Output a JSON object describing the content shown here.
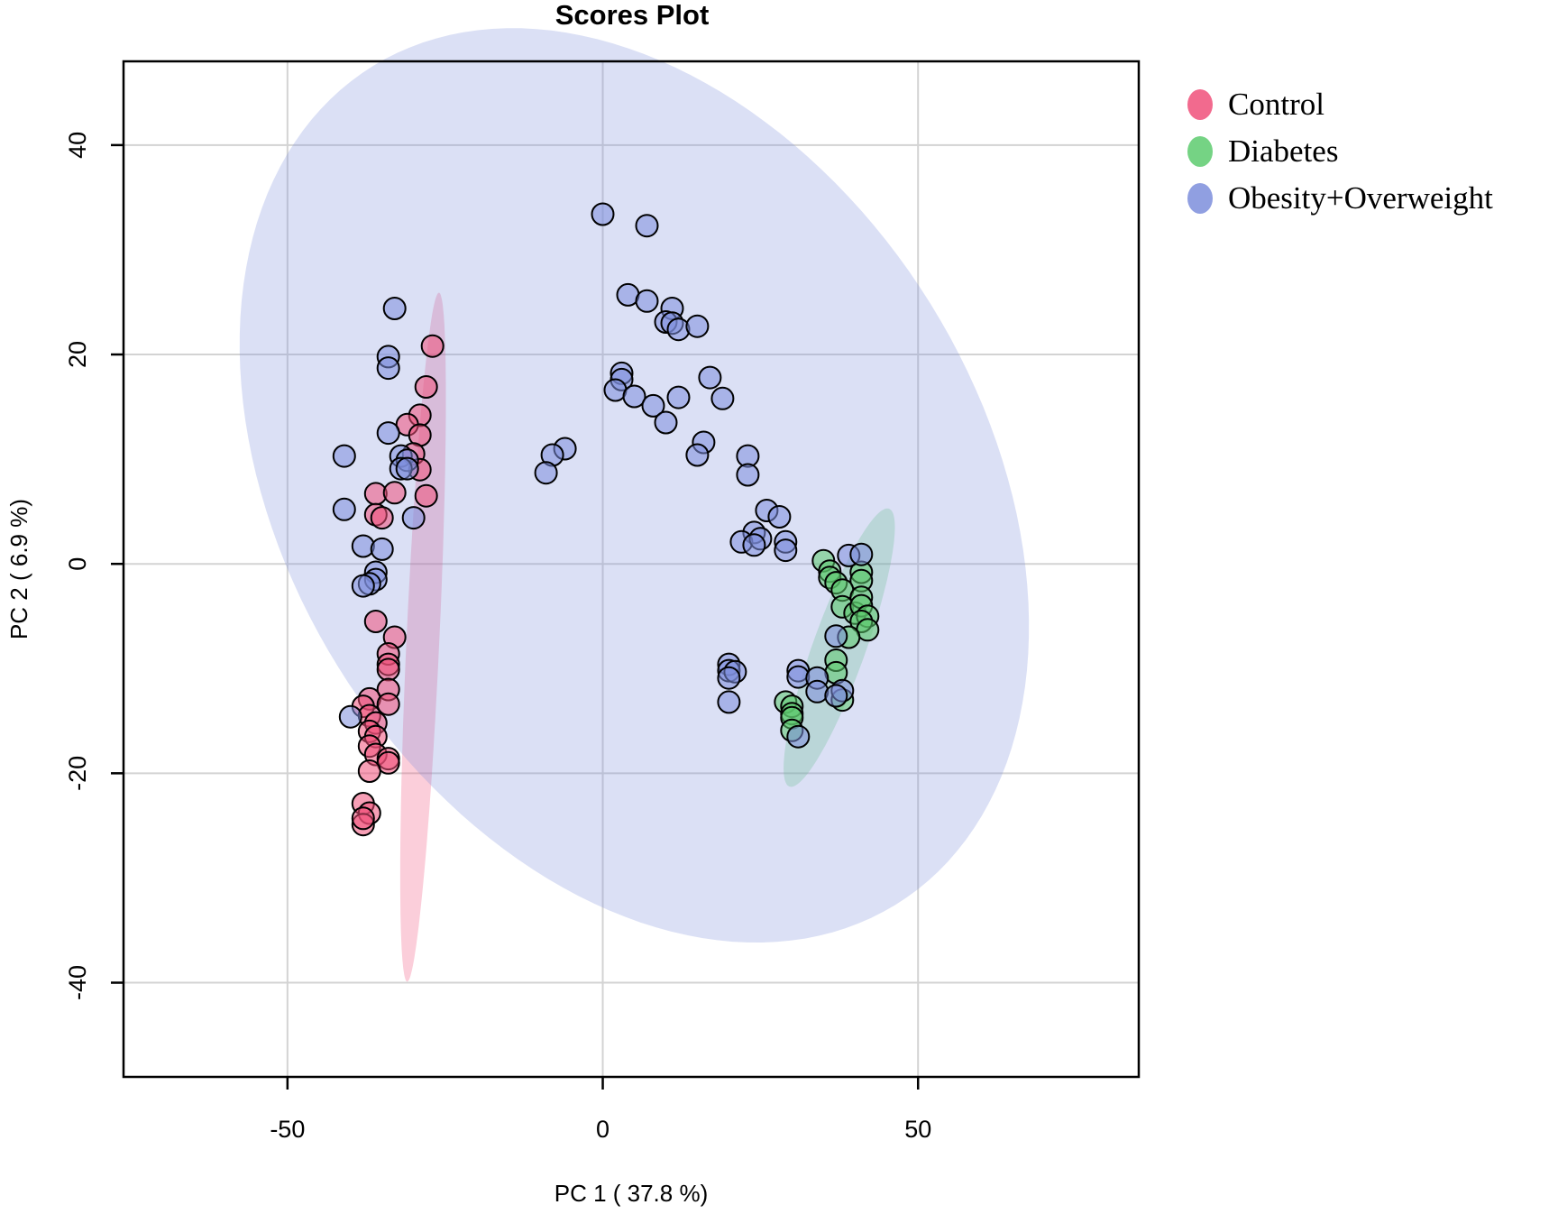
{
  "chart_data": {
    "type": "scatter",
    "title": "Scores Plot",
    "xlabel": "PC 1 ( 37.8 %)",
    "ylabel": "PC 2 ( 6.9 %)",
    "xlim": [
      -76,
      85
    ],
    "ylim": [
      -49,
      48
    ],
    "xticks": [
      -50,
      0,
      50
    ],
    "yticks": [
      -40,
      -20,
      0,
      20,
      40
    ],
    "grid": true,
    "legend_position": "top-right outside",
    "series": [
      {
        "name": "Control",
        "color": "#F0507A",
        "ellipse": {
          "cx": -28.5,
          "cy": -7,
          "rx": 33,
          "ry": 2.6,
          "angle_deg": 85.6
        },
        "points": [
          [
            -27,
            20.8
          ],
          [
            -28,
            16.9
          ],
          [
            -29,
            14.2
          ],
          [
            -31,
            13.3
          ],
          [
            -29,
            12.3
          ],
          [
            -30,
            10.5
          ],
          [
            -29,
            9.0
          ],
          [
            -36,
            6.7
          ],
          [
            -28,
            6.5
          ],
          [
            -33,
            6.8
          ],
          [
            -36,
            4.7
          ],
          [
            -35,
            4.4
          ],
          [
            -36,
            -5.5
          ],
          [
            -33,
            -7.0
          ],
          [
            -34,
            -8.6
          ],
          [
            -34,
            -9.6
          ],
          [
            -34,
            -10.1
          ],
          [
            -34,
            -12.0
          ],
          [
            -37,
            -12.9
          ],
          [
            -34,
            -13.4
          ],
          [
            -38,
            -13.6
          ],
          [
            -37,
            -14.5
          ],
          [
            -36,
            -15.2
          ],
          [
            -37,
            -16.0
          ],
          [
            -36,
            -16.5
          ],
          [
            -37,
            -17.4
          ],
          [
            -36,
            -18.2
          ],
          [
            -34,
            -18.6
          ],
          [
            -34,
            -19.0
          ],
          [
            -37,
            -19.8
          ],
          [
            -38,
            -22.9
          ],
          [
            -37,
            -23.8
          ],
          [
            -38,
            -24.9
          ],
          [
            -38,
            -24.3
          ]
        ]
      },
      {
        "name": "Diabetes",
        "color": "#5DCB6E",
        "ellipse": {
          "cx": 37.5,
          "cy": -8,
          "rx": 15.5,
          "ry": 3.8,
          "angle_deg": 58
        },
        "points": [
          [
            35,
            0.3
          ],
          [
            36,
            -0.7
          ],
          [
            36,
            -1.3
          ],
          [
            37,
            -1.8
          ],
          [
            41,
            -0.8
          ],
          [
            41,
            -1.6
          ],
          [
            38,
            -2.5
          ],
          [
            38,
            -4.1
          ],
          [
            40,
            -4.7
          ],
          [
            41,
            -3.2
          ],
          [
            41,
            -4.0
          ],
          [
            42,
            -5.0
          ],
          [
            41,
            -5.5
          ],
          [
            42,
            -6.3
          ],
          [
            39,
            -7.0
          ],
          [
            37,
            -9.2
          ],
          [
            37,
            -10.4
          ],
          [
            38,
            -13.0
          ],
          [
            29,
            -13.2
          ],
          [
            30,
            -13.6
          ],
          [
            30,
            -14.3
          ],
          [
            30,
            -14.7
          ],
          [
            30,
            -15.9
          ]
        ]
      },
      {
        "name": "Obesity+Overweight",
        "color": "#7D8EDC",
        "ellipse": {
          "cx": 5,
          "cy": 7.5,
          "rx": 65,
          "ry": 40,
          "angle_deg": -20
        },
        "points": [
          [
            0,
            33.4
          ],
          [
            7,
            32.3
          ],
          [
            4,
            25.7
          ],
          [
            7,
            25.1
          ],
          [
            11,
            24.4
          ],
          [
            10,
            23.1
          ],
          [
            11,
            23.0
          ],
          [
            12,
            22.4
          ],
          [
            15,
            22.7
          ],
          [
            3,
            18.2
          ],
          [
            3,
            17.6
          ],
          [
            2,
            16.6
          ],
          [
            17,
            17.8
          ],
          [
            5,
            16.0
          ],
          [
            12,
            15.9
          ],
          [
            19,
            15.8
          ],
          [
            8,
            15.1
          ],
          [
            10,
            13.5
          ],
          [
            16,
            11.6
          ],
          [
            15,
            10.4
          ],
          [
            23,
            10.3
          ],
          [
            23,
            8.5
          ],
          [
            -6,
            11.0
          ],
          [
            -8,
            10.4
          ],
          [
            -9,
            8.7
          ],
          [
            -33,
            24.4
          ],
          [
            -34,
            19.8
          ],
          [
            -34,
            18.7
          ],
          [
            -34,
            12.5
          ],
          [
            -41,
            10.3
          ],
          [
            -32,
            10.3
          ],
          [
            -31,
            9.9
          ],
          [
            -32,
            9.1
          ],
          [
            -31,
            9.1
          ],
          [
            -30,
            4.4
          ],
          [
            -41,
            5.2
          ],
          [
            -38,
            1.7
          ],
          [
            -35,
            1.4
          ],
          [
            -36,
            -0.8
          ],
          [
            -36,
            -1.5
          ],
          [
            -37,
            -1.9
          ],
          [
            -38,
            -2.1
          ],
          [
            -40,
            -14.6
          ],
          [
            26,
            5.1
          ],
          [
            28,
            4.5
          ],
          [
            24,
            3.0
          ],
          [
            22,
            2.1
          ],
          [
            25,
            2.4
          ],
          [
            24,
            1.8
          ],
          [
            29,
            2.1
          ],
          [
            29,
            1.3
          ],
          [
            39,
            0.8
          ],
          [
            41,
            0.9
          ],
          [
            37,
            -6.9
          ],
          [
            20,
            -9.6
          ],
          [
            20,
            -10.2
          ],
          [
            21,
            -10.3
          ],
          [
            20,
            -10.9
          ],
          [
            20,
            -13.2
          ],
          [
            31,
            -10.2
          ],
          [
            31,
            -10.8
          ],
          [
            34,
            -10.9
          ],
          [
            34,
            -12.2
          ],
          [
            38,
            -12.1
          ],
          [
            37,
            -12.6
          ],
          [
            31,
            -16.5
          ]
        ]
      }
    ]
  }
}
